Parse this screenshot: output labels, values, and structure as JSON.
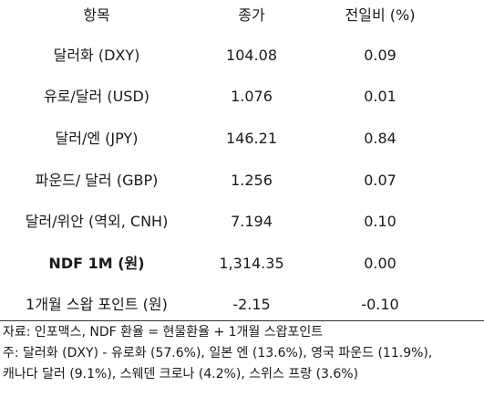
{
  "table": {
    "headers": {
      "name": "항목",
      "close": "종가",
      "change": "전일비 (%)"
    },
    "rows": [
      {
        "name": "달러화 (DXY)",
        "close": "104.08",
        "change": "0.09"
      },
      {
        "name": "유로/달러 (USD)",
        "close": "1.076",
        "change": "0.01"
      },
      {
        "name": "달러/엔 (JPY)",
        "close": "146.21",
        "change": "0.84"
      },
      {
        "name": "파운드/ 달러 (GBP)",
        "close": "1.256",
        "change": "0.07"
      },
      {
        "name": "달러/위안 (역외, CNH)",
        "close": "7.194",
        "change": "0.10"
      },
      {
        "name": "NDF 1M (원)",
        "close": "1,314.35",
        "change": "0.00"
      },
      {
        "name": "1개월 스왑 포인트 (원)",
        "close": "-2.15",
        "change": "-0.10"
      }
    ]
  },
  "notes": {
    "source": "자료: 인포맥스, NDF 환율 = 현물환율 + 1개월 스왑포인트",
    "note_line1": "주: 달러화 (DXY) - 유로화 (57.6%), 일본 엔 (13.6%), 영국 파운드 (11.9%),",
    "note_line2": "캐나다 달러 (9.1%), 스웨덴 크로나 (4.2%), 스위스 프랑 (3.6%)"
  }
}
